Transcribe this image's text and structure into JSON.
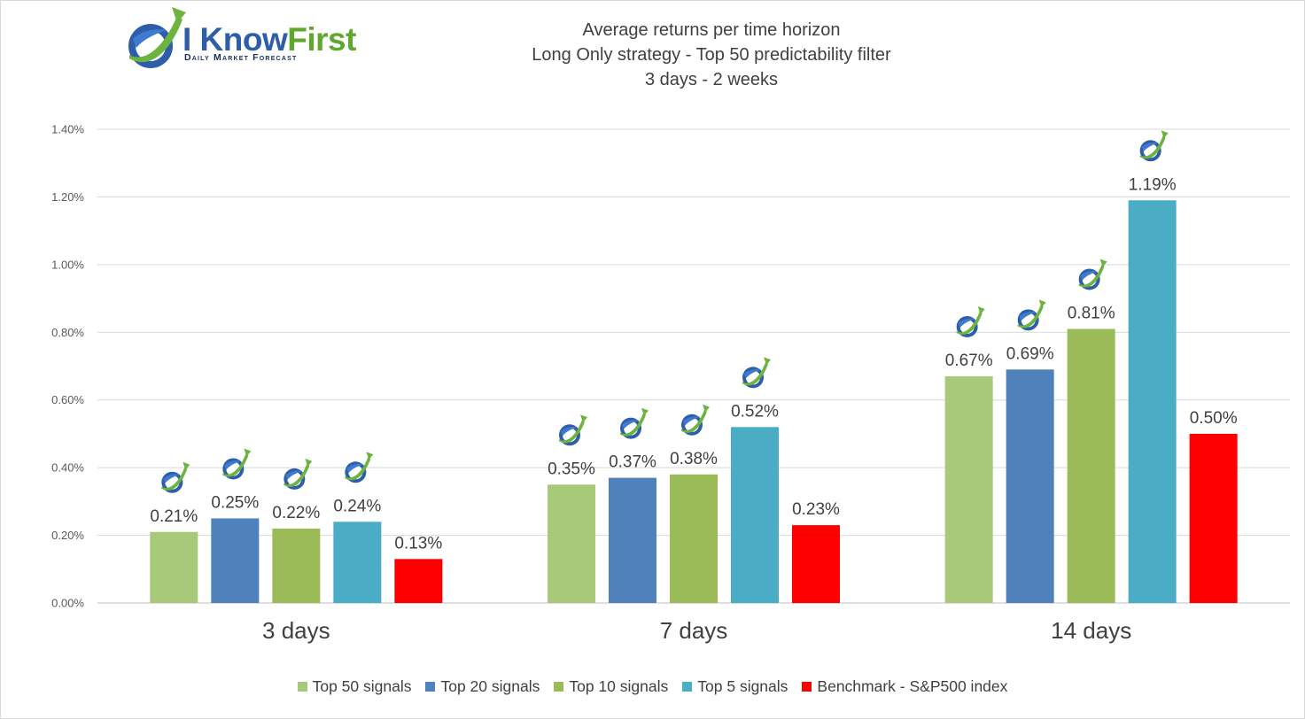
{
  "logo": {
    "brand_i": "I Know",
    "brand_first": "First",
    "tagline": "Daily Market Forecast",
    "icon": "ikf-swoosh-arrow-icon"
  },
  "chart_data": {
    "type": "bar",
    "title_lines": [
      "Average returns per time horizon",
      "Long Only strategy - Top 50 predictability filter",
      "3 days - 2 weeks"
    ],
    "xlabel": "",
    "ylabel": "",
    "ylim": [
      0,
      1.4
    ],
    "y_ticks": [
      "0.00%",
      "0.20%",
      "0.40%",
      "0.60%",
      "0.80%",
      "1.00%",
      "1.20%",
      "1.40%"
    ],
    "grid": true,
    "legend_position": "bottom",
    "categories": [
      "3 days",
      "7 days",
      "14 days"
    ],
    "series": [
      {
        "name": "Top 50 signals",
        "color": "#a9c97a",
        "values": [
          0.21,
          0.35,
          0.67
        ],
        "labels": [
          "0.21%",
          "0.35%",
          "0.67%"
        ],
        "icon_flags": [
          true,
          true,
          true
        ]
      },
      {
        "name": "Top 20 signals",
        "color": "#4f81bd",
        "values": [
          0.25,
          0.37,
          0.69
        ],
        "labels": [
          "0.25%",
          "0.37%",
          "0.69%"
        ],
        "icon_flags": [
          true,
          true,
          true
        ]
      },
      {
        "name": "Top 10 signals",
        "color": "#9bbb59",
        "values": [
          0.22,
          0.38,
          0.81
        ],
        "labels": [
          "0.22%",
          "0.38%",
          "0.81%"
        ],
        "icon_flags": [
          true,
          true,
          true
        ]
      },
      {
        "name": "Top 5 signals",
        "color": "#4bacc6",
        "values": [
          0.24,
          0.52,
          1.19
        ],
        "labels": [
          "0.24%",
          "0.52%",
          "1.19%"
        ],
        "icon_flags": [
          true,
          true,
          true
        ]
      },
      {
        "name": "Benchmark - S&P500 index",
        "color": "#ff0000",
        "values": [
          0.13,
          0.23,
          0.5
        ],
        "labels": [
          "0.13%",
          "0.23%",
          "0.50%"
        ],
        "icon_flags": [
          false,
          false,
          false
        ]
      }
    ],
    "annotation_icon": "ikf-swoosh-arrow-icon"
  }
}
